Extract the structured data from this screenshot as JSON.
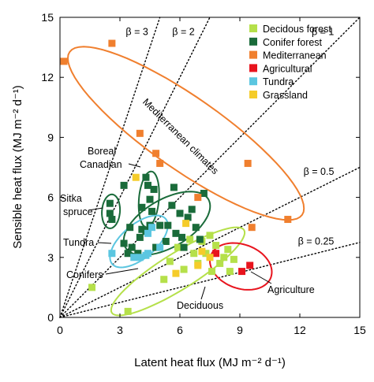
{
  "chart_data": {
    "type": "scatter",
    "title": "",
    "xlabel": "Latent heat flux (MJ m⁻² d⁻¹)",
    "ylabel": "Sensible heat flux (MJ m⁻² d⁻¹)",
    "xlim": [
      0,
      15
    ],
    "ylim": [
      0,
      15
    ],
    "xticks": [
      0,
      3,
      6,
      9,
      12,
      15
    ],
    "yticks": [
      0,
      3,
      6,
      9,
      12,
      15
    ],
    "grid": false,
    "legend_position": "top-right",
    "series": [
      {
        "name": "Decidous forest",
        "color": "#b5e04a",
        "points": [
          [
            1.6,
            1.5
          ],
          [
            3.4,
            0.3
          ],
          [
            5.2,
            1.9
          ],
          [
            5.5,
            2.8
          ],
          [
            5.9,
            3.5
          ],
          [
            6.2,
            2.4
          ],
          [
            6.5,
            3.9
          ],
          [
            6.7,
            3.2
          ],
          [
            6.9,
            2.7
          ],
          [
            7.1,
            3.8
          ],
          [
            7.3,
            3.2
          ],
          [
            7.5,
            4.1
          ],
          [
            7.6,
            2.3
          ],
          [
            7.8,
            3.6
          ],
          [
            8.0,
            2.7
          ],
          [
            8.2,
            3.0
          ],
          [
            8.4,
            3.4
          ],
          [
            8.5,
            2.3
          ],
          [
            8.7,
            2.9
          ]
        ]
      },
      {
        "name": "Conifer forest",
        "color": "#1a6b3a",
        "points": [
          [
            2.5,
            5.7
          ],
          [
            2.5,
            5.2
          ],
          [
            2.6,
            4.9
          ],
          [
            3.2,
            3.7
          ],
          [
            3.4,
            3.2
          ],
          [
            3.5,
            4.5
          ],
          [
            3.6,
            3.5
          ],
          [
            3.9,
            3.2
          ],
          [
            4.0,
            4.0
          ],
          [
            4.1,
            4.4
          ],
          [
            4.1,
            5.5
          ],
          [
            4.3,
            4.3
          ],
          [
            4.3,
            7.0
          ],
          [
            4.4,
            6.6
          ],
          [
            4.5,
            5.9
          ],
          [
            4.5,
            4.6
          ],
          [
            4.6,
            5.3
          ],
          [
            4.7,
            6.4
          ],
          [
            4.8,
            3.5
          ],
          [
            5.0,
            4.6
          ],
          [
            5.3,
            3.8
          ],
          [
            5.4,
            4.6
          ],
          [
            5.6,
            5.6
          ],
          [
            5.7,
            6.5
          ],
          [
            5.8,
            4.2
          ],
          [
            6.0,
            5.2
          ],
          [
            6.1,
            4.0
          ],
          [
            6.2,
            3.5
          ],
          [
            6.4,
            5.0
          ],
          [
            6.6,
            5.4
          ],
          [
            6.8,
            4.5
          ],
          [
            7.0,
            3.9
          ],
          [
            7.2,
            6.2
          ],
          [
            3.2,
            6.6
          ]
        ]
      },
      {
        "name": "Mediterranean",
        "color": "#f07f2e",
        "points": [
          [
            0.2,
            12.8
          ],
          [
            2.6,
            13.7
          ],
          [
            4.0,
            9.2
          ],
          [
            4.8,
            8.2
          ],
          [
            5.0,
            7.7
          ],
          [
            6.9,
            6.0
          ],
          [
            9.4,
            7.7
          ],
          [
            9.6,
            4.5
          ],
          [
            11.4,
            4.9
          ]
        ]
      },
      {
        "name": "Agricultural",
        "color": "#e8141e",
        "points": [
          [
            7.8,
            3.2
          ],
          [
            9.1,
            2.3
          ],
          [
            9.5,
            2.6
          ]
        ]
      },
      {
        "name": "Tundra",
        "color": "#5bc6e0",
        "points": [
          [
            2.6,
            3.2
          ],
          [
            3.7,
            3.0
          ],
          [
            4.0,
            3.0
          ],
          [
            4.3,
            3.1
          ],
          [
            4.4,
            3.2
          ],
          [
            4.4,
            4.2
          ],
          [
            4.6,
            4.5
          ],
          [
            5.0,
            3.5
          ]
        ]
      },
      {
        "name": "Grassland",
        "color": "#f5cc2a",
        "points": [
          [
            3.8,
            7.0
          ],
          [
            5.8,
            2.2
          ],
          [
            6.3,
            4.7
          ],
          [
            6.9,
            2.6
          ],
          [
            7.1,
            3.3
          ],
          [
            7.5,
            3.0
          ]
        ]
      }
    ],
    "reference_lines": [
      {
        "label": "β = 3",
        "slope": 3
      },
      {
        "label": "β = 2",
        "slope": 2
      },
      {
        "label": "β = 1",
        "slope": 1
      },
      {
        "label": "β = 0.5",
        "slope": 0.5
      },
      {
        "label": "β = 0.25",
        "slope": 0.25
      }
    ],
    "ellipses": [
      {
        "group": "Mediterranean",
        "color": "#f07f2e",
        "cx": 6.3,
        "cy": 9.2,
        "rx": 7.1,
        "ry": 1.8,
        "angle_deg": -35
      },
      {
        "group": "Boreal Canadian",
        "color": "#1a6b3a",
        "cx": 4.45,
        "cy": 5.9,
        "rx": 1.4,
        "ry": 0.5,
        "angle_deg": 85
      },
      {
        "group": "Sitka spruce",
        "color": "#1a6b3a",
        "cx": 2.55,
        "cy": 5.3,
        "rx": 0.85,
        "ry": 0.45,
        "angle_deg": 86
      },
      {
        "group": "Conifers",
        "color": "#1a6b3a",
        "cx": 5.35,
        "cy": 4.7,
        "rx": 2.4,
        "ry": 1.2,
        "angle_deg": 30
      },
      {
        "group": "Tundra",
        "color": "#5bc6e0",
        "cx": 3.95,
        "cy": 3.8,
        "rx": 1.75,
        "ry": 0.85,
        "angle_deg": 40
      },
      {
        "group": "Deciduous",
        "color": "#b5e04a",
        "cx": 5.9,
        "cy": 2.3,
        "rx": 3.9,
        "ry": 0.9,
        "angle_deg": 32
      },
      {
        "group": "Agriculture",
        "color": "#e8141e",
        "cx": 9.05,
        "cy": 2.55,
        "rx": 1.6,
        "ry": 1.1,
        "angle_deg": -20
      }
    ],
    "annotations": [
      {
        "text": "Mediterranean climates"
      },
      {
        "text": "Boreal"
      },
      {
        "text": "Canadian"
      },
      {
        "text": "Sitka"
      },
      {
        "text": "spruce"
      },
      {
        "text": "Tundra"
      },
      {
        "text": "Conifers"
      },
      {
        "text": "Deciduous"
      },
      {
        "text": "Agriculture"
      }
    ]
  }
}
